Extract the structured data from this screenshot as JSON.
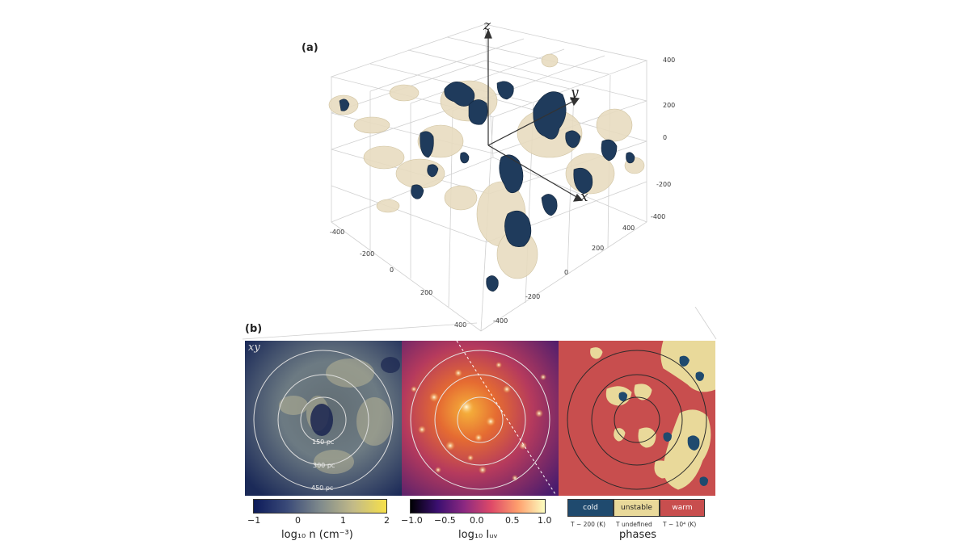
{
  "panel_a": {
    "label": "(a)",
    "axes": {
      "z": "z",
      "y": "y",
      "x": "x"
    },
    "ticks_right_upper": [
      "400",
      "200",
      "0",
      "-200",
      "-400"
    ],
    "ticks_right_lower": [
      "400",
      "200",
      "0",
      "-200",
      "-400"
    ],
    "ticks_left": [
      "-400",
      "-200",
      "0",
      "200",
      "400"
    ],
    "colors": {
      "cold": "#1f3b5c",
      "warm_iso": "#e8dcc0",
      "grid": "#cccccc"
    }
  },
  "panel_b": {
    "label": "(b)",
    "map_label": "xy",
    "rings": [
      "150 pc",
      "300 pc",
      "450 pc"
    ],
    "density_cbar": {
      "ticks": [
        "−1",
        "0",
        "1",
        "2"
      ],
      "label": "log₁₀ n (cm⁻³)"
    },
    "uv_cbar": {
      "ticks": [
        "−1.0",
        "−0.5",
        "0.0",
        "0.5",
        "1.0"
      ],
      "label": "log₁₀ Iᵤᵥ"
    },
    "phases": {
      "items": [
        {
          "name": "cold",
          "sub": "T ~ 200 (K)",
          "color": "#1f4a6e",
          "text_color": "#ffffff"
        },
        {
          "name": "unstable",
          "sub": "T undefined",
          "color": "#e9d99a",
          "text_color": "#222222"
        },
        {
          "name": "warm",
          "sub": "T ~ 10⁴ (K)",
          "color": "#c84e4e",
          "text_color": "#ffffff"
        }
      ],
      "label": "phases"
    }
  }
}
